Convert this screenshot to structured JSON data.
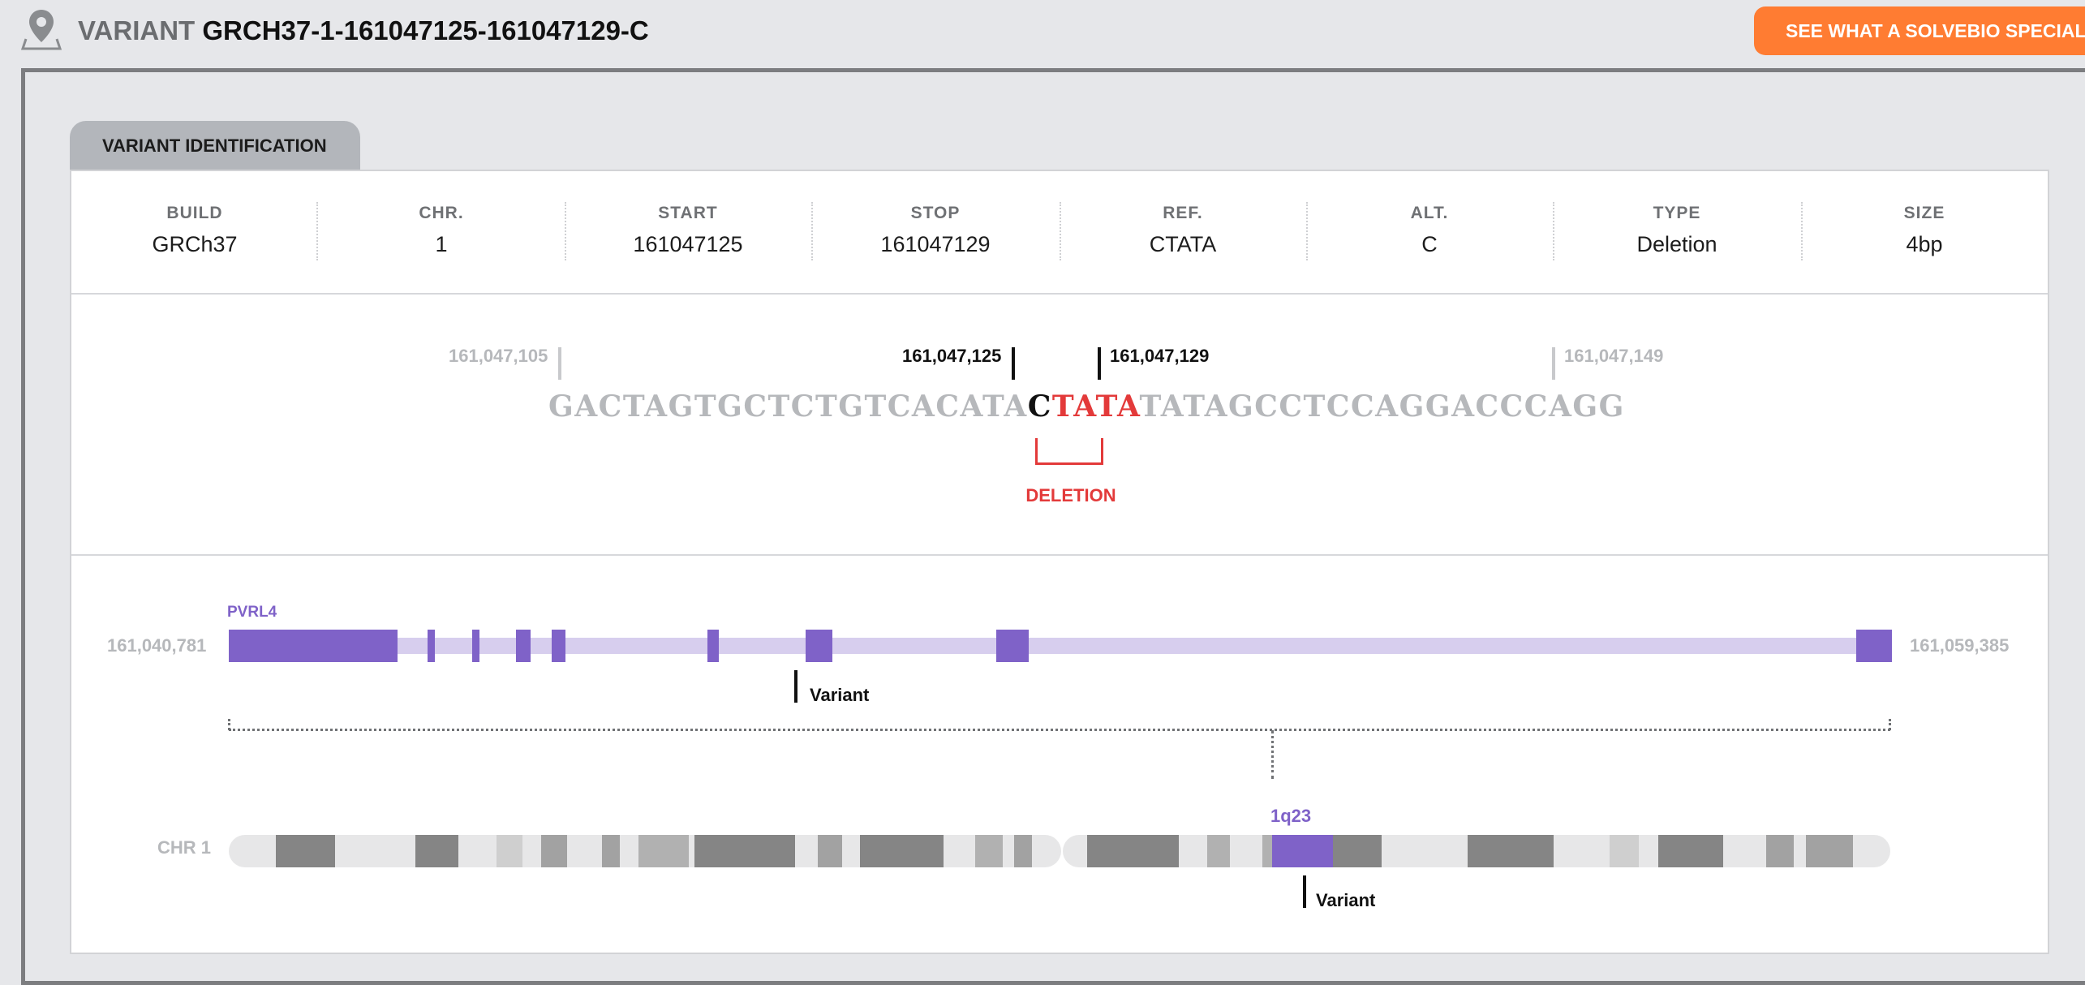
{
  "header": {
    "label": "VARIANT",
    "variant_id": "GRCH37-1-161047125-161047129-C",
    "cta_label": "SEE WHAT A SOLVEBIO SPECIALIST I"
  },
  "section": {
    "tab_label": "VARIANT IDENTIFICATION"
  },
  "info": [
    {
      "label": "BUILD",
      "value": "GRCh37"
    },
    {
      "label": "CHR.",
      "value": "1"
    },
    {
      "label": "START",
      "value": "161047125"
    },
    {
      "label": "STOP",
      "value": "161047129"
    },
    {
      "label": "REF.",
      "value": "CTATA"
    },
    {
      "label": "ALT.",
      "value": "C"
    },
    {
      "label": "TYPE",
      "value": "Deletion"
    },
    {
      "label": "SIZE",
      "value": "4bp"
    }
  ],
  "sequence": {
    "left_pos": "161,047,105",
    "start_pos": "161,047,125",
    "stop_pos": "161,047,129",
    "right_pos": "161,047,149",
    "prefix": "GACTAGTGCTCTGTCACATA",
    "anchor": "C",
    "deleted": "TATA",
    "suffix": "TATAGCCTCCAGGACCCAGG",
    "deletion_label": "DELETION"
  },
  "gene_track": {
    "gene": "PVRL4",
    "start_coord": "161,040,781",
    "end_coord": "161,059,385",
    "variant_label": "Variant",
    "color": "#7f62c8"
  },
  "chromosome": {
    "label": "CHR 1",
    "band": "1q23",
    "variant_label": "Variant"
  },
  "colors": {
    "accent": "#ff7c32",
    "gene": "#7f62c8",
    "deletion": "#e33a3a"
  }
}
